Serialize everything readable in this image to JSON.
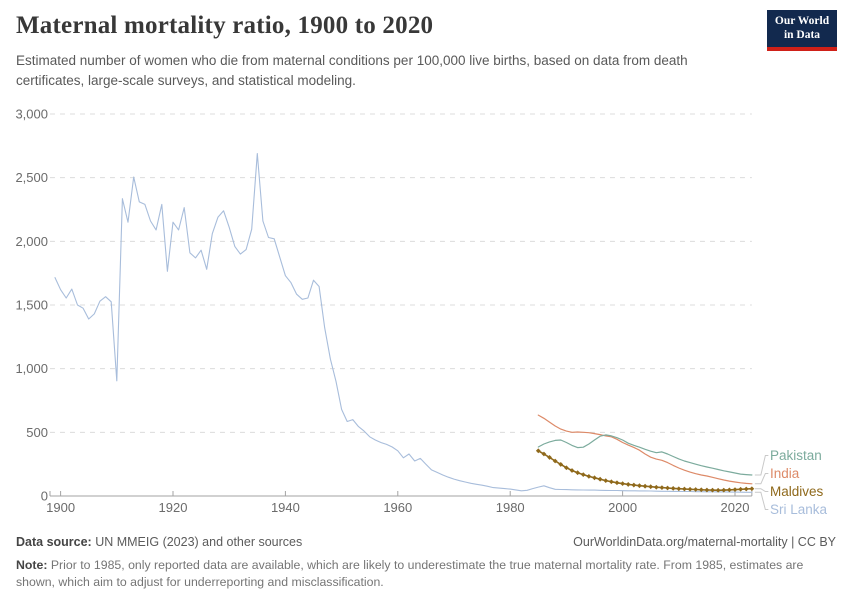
{
  "header": {
    "title": "Maternal mortality ratio, 1900 to 2020",
    "subtitle": "Estimated number of women who die from maternal conditions per 100,000 live births, based on data from death certificates, large-scale surveys, and statistical modeling.",
    "logo": {
      "line1": "Our World",
      "line2": "in Data",
      "bg_color": "#12294e",
      "accent_color": "#cf2018"
    }
  },
  "footer": {
    "source_label": "Data source:",
    "source_text": " UN MMEIG (2023) and other sources",
    "citation": "OurWorldinData.org/maternal-mortality | CC BY",
    "note_label": "Note:",
    "note_text": " Prior to 1985, only reported data are available, which are likely to underestimate the true maternal mortality rate. From 1985, estimates are shown, which aim to adjust for underreporting and misclassification."
  },
  "chart_data": {
    "type": "line",
    "title": "Maternal mortality ratio, 1900 to 2020",
    "xlabel": "",
    "ylabel": "",
    "xlim": [
      1899,
      2023
    ],
    "ylim": [
      0,
      3000
    ],
    "x_ticks": [
      1900,
      1920,
      1940,
      1960,
      1980,
      2000,
      2020
    ],
    "y_ticks": [
      0,
      500,
      1000,
      1500,
      2000,
      2500,
      3000
    ],
    "y_tick_labels": [
      "0",
      "500",
      "1,000",
      "1,500",
      "2,000",
      "2,500",
      "3,000"
    ],
    "grid": "horizontal-dashed",
    "grid_color": "#dcdcdc",
    "axis_color": "#a3a3a3",
    "tick_label_color": "#6b6b6b",
    "leader_line_color": "#c9c9c9",
    "legend_position": "right",
    "legend_order": [
      "Pakistan",
      "India",
      "Maldives",
      "Sri Lanka"
    ],
    "series": [
      {
        "name": "Sri Lanka",
        "color": "#a8bddb",
        "markers": false,
        "width": 1.1,
        "points": [
          [
            1899,
            1715
          ],
          [
            1900,
            1620
          ],
          [
            1901,
            1555
          ],
          [
            1902,
            1625
          ],
          [
            1903,
            1500
          ],
          [
            1904,
            1475
          ],
          [
            1905,
            1390
          ],
          [
            1906,
            1430
          ],
          [
            1907,
            1530
          ],
          [
            1908,
            1565
          ],
          [
            1909,
            1525
          ],
          [
            1910,
            905
          ],
          [
            1911,
            2335
          ],
          [
            1912,
            2150
          ],
          [
            1913,
            2505
          ],
          [
            1914,
            2310
          ],
          [
            1915,
            2290
          ],
          [
            1916,
            2160
          ],
          [
            1917,
            2090
          ],
          [
            1918,
            2290
          ],
          [
            1919,
            1765
          ],
          [
            1920,
            2150
          ],
          [
            1921,
            2090
          ],
          [
            1922,
            2265
          ],
          [
            1923,
            1910
          ],
          [
            1924,
            1870
          ],
          [
            1925,
            1930
          ],
          [
            1926,
            1780
          ],
          [
            1927,
            2060
          ],
          [
            1928,
            2190
          ],
          [
            1929,
            2240
          ],
          [
            1930,
            2110
          ],
          [
            1931,
            1960
          ],
          [
            1932,
            1900
          ],
          [
            1933,
            1935
          ],
          [
            1934,
            2095
          ],
          [
            1935,
            2690
          ],
          [
            1936,
            2160
          ],
          [
            1937,
            2030
          ],
          [
            1938,
            2020
          ],
          [
            1939,
            1875
          ],
          [
            1940,
            1730
          ],
          [
            1941,
            1675
          ],
          [
            1942,
            1585
          ],
          [
            1943,
            1545
          ],
          [
            1944,
            1555
          ],
          [
            1945,
            1695
          ],
          [
            1946,
            1645
          ],
          [
            1947,
            1320
          ],
          [
            1948,
            1075
          ],
          [
            1949,
            900
          ],
          [
            1950,
            680
          ],
          [
            1951,
            585
          ],
          [
            1952,
            600
          ],
          [
            1953,
            545
          ],
          [
            1954,
            510
          ],
          [
            1955,
            465
          ],
          [
            1956,
            440
          ],
          [
            1957,
            420
          ],
          [
            1958,
            405
          ],
          [
            1959,
            385
          ],
          [
            1960,
            355
          ],
          [
            1961,
            300
          ],
          [
            1962,
            330
          ],
          [
            1963,
            275
          ],
          [
            1964,
            295
          ],
          [
            1965,
            250
          ],
          [
            1966,
            205
          ],
          [
            1967,
            185
          ],
          [
            1968,
            165
          ],
          [
            1969,
            148
          ],
          [
            1970,
            133
          ],
          [
            1971,
            120
          ],
          [
            1972,
            110
          ],
          [
            1973,
            100
          ],
          [
            1974,
            92
          ],
          [
            1975,
            85
          ],
          [
            1976,
            76
          ],
          [
            1977,
            66
          ],
          [
            1978,
            62
          ],
          [
            1979,
            58
          ],
          [
            1980,
            54
          ],
          [
            1981,
            48
          ],
          [
            1982,
            41
          ],
          [
            1983,
            45
          ],
          [
            1984,
            58
          ],
          [
            1985,
            70
          ],
          [
            1986,
            80
          ],
          [
            1987,
            65
          ],
          [
            1988,
            53
          ],
          [
            1989,
            51
          ],
          [
            1990,
            50
          ],
          [
            1991,
            49
          ],
          [
            1992,
            48
          ],
          [
            1993,
            47
          ],
          [
            1994,
            46
          ],
          [
            1995,
            46
          ],
          [
            1996,
            45
          ],
          [
            1997,
            44
          ],
          [
            1998,
            43
          ],
          [
            1999,
            43
          ],
          [
            2000,
            42
          ],
          [
            2001,
            41
          ],
          [
            2002,
            41
          ],
          [
            2003,
            40
          ],
          [
            2004,
            40
          ],
          [
            2005,
            39
          ],
          [
            2006,
            38
          ],
          [
            2007,
            37
          ],
          [
            2008,
            37
          ],
          [
            2009,
            36
          ],
          [
            2010,
            36
          ],
          [
            2011,
            35
          ],
          [
            2012,
            35
          ],
          [
            2013,
            34
          ],
          [
            2014,
            34
          ],
          [
            2015,
            33
          ],
          [
            2016,
            33
          ],
          [
            2017,
            32
          ],
          [
            2018,
            32
          ],
          [
            2019,
            31
          ],
          [
            2020,
            31
          ],
          [
            2021,
            30
          ],
          [
            2022,
            29
          ],
          [
            2023,
            29
          ]
        ]
      },
      {
        "name": "India",
        "color": "#dd8a68",
        "markers": false,
        "width": 1.2,
        "points": [
          [
            1985,
            635
          ],
          [
            1986,
            610
          ],
          [
            1987,
            580
          ],
          [
            1988,
            550
          ],
          [
            1989,
            525
          ],
          [
            1990,
            510
          ],
          [
            1991,
            500
          ],
          [
            1992,
            503
          ],
          [
            1993,
            500
          ],
          [
            1994,
            497
          ],
          [
            1995,
            490
          ],
          [
            1996,
            482
          ],
          [
            1997,
            472
          ],
          [
            1998,
            465
          ],
          [
            1999,
            445
          ],
          [
            2000,
            420
          ],
          [
            2001,
            400
          ],
          [
            2002,
            382
          ],
          [
            2003,
            360
          ],
          [
            2004,
            330
          ],
          [
            2005,
            305
          ],
          [
            2006,
            290
          ],
          [
            2007,
            280
          ],
          [
            2008,
            262
          ],
          [
            2009,
            240
          ],
          [
            2010,
            220
          ],
          [
            2011,
            203
          ],
          [
            2012,
            188
          ],
          [
            2013,
            175
          ],
          [
            2014,
            165
          ],
          [
            2015,
            157
          ],
          [
            2016,
            147
          ],
          [
            2017,
            136
          ],
          [
            2018,
            126
          ],
          [
            2019,
            117
          ],
          [
            2020,
            110
          ],
          [
            2021,
            104
          ],
          [
            2022,
            99
          ],
          [
            2023,
            96
          ]
        ]
      },
      {
        "name": "Pakistan",
        "color": "#7cab9d",
        "markers": false,
        "width": 1.2,
        "points": [
          [
            1985,
            385
          ],
          [
            1986,
            408
          ],
          [
            1987,
            425
          ],
          [
            1988,
            437
          ],
          [
            1989,
            440
          ],
          [
            1990,
            420
          ],
          [
            1991,
            397
          ],
          [
            1992,
            380
          ],
          [
            1993,
            383
          ],
          [
            1994,
            408
          ],
          [
            1995,
            440
          ],
          [
            1996,
            470
          ],
          [
            1997,
            480
          ],
          [
            1998,
            472
          ],
          [
            1999,
            458
          ],
          [
            2000,
            440
          ],
          [
            2001,
            415
          ],
          [
            2002,
            398
          ],
          [
            2003,
            383
          ],
          [
            2004,
            367
          ],
          [
            2005,
            352
          ],
          [
            2006,
            340
          ],
          [
            2007,
            346
          ],
          [
            2008,
            330
          ],
          [
            2009,
            310
          ],
          [
            2010,
            291
          ],
          [
            2011,
            275
          ],
          [
            2012,
            262
          ],
          [
            2013,
            250
          ],
          [
            2014,
            238
          ],
          [
            2015,
            228
          ],
          [
            2016,
            218
          ],
          [
            2017,
            208
          ],
          [
            2018,
            198
          ],
          [
            2019,
            189
          ],
          [
            2020,
            181
          ],
          [
            2021,
            172
          ],
          [
            2022,
            168
          ],
          [
            2023,
            165
          ]
        ]
      },
      {
        "name": "Maldives",
        "color": "#8f691b",
        "markers": true,
        "width": 1.6,
        "points": [
          [
            1985,
            355
          ],
          [
            1986,
            330
          ],
          [
            1987,
            303
          ],
          [
            1988,
            275
          ],
          [
            1989,
            248
          ],
          [
            1990,
            222
          ],
          [
            1991,
            200
          ],
          [
            1992,
            183
          ],
          [
            1993,
            168
          ],
          [
            1994,
            154
          ],
          [
            1995,
            143
          ],
          [
            1996,
            132
          ],
          [
            1997,
            121
          ],
          [
            1998,
            112
          ],
          [
            1999,
            104
          ],
          [
            2000,
            97
          ],
          [
            2001,
            91
          ],
          [
            2002,
            86
          ],
          [
            2003,
            81
          ],
          [
            2004,
            77
          ],
          [
            2005,
            73
          ],
          [
            2006,
            69
          ],
          [
            2007,
            66
          ],
          [
            2008,
            63
          ],
          [
            2009,
            60
          ],
          [
            2010,
            57
          ],
          [
            2011,
            55
          ],
          [
            2012,
            53
          ],
          [
            2013,
            51
          ],
          [
            2014,
            49
          ],
          [
            2015,
            47
          ],
          [
            2016,
            46
          ],
          [
            2017,
            45
          ],
          [
            2018,
            46
          ],
          [
            2019,
            48
          ],
          [
            2020,
            50
          ],
          [
            2021,
            53
          ],
          [
            2022,
            55
          ],
          [
            2023,
            57
          ]
        ]
      }
    ]
  }
}
